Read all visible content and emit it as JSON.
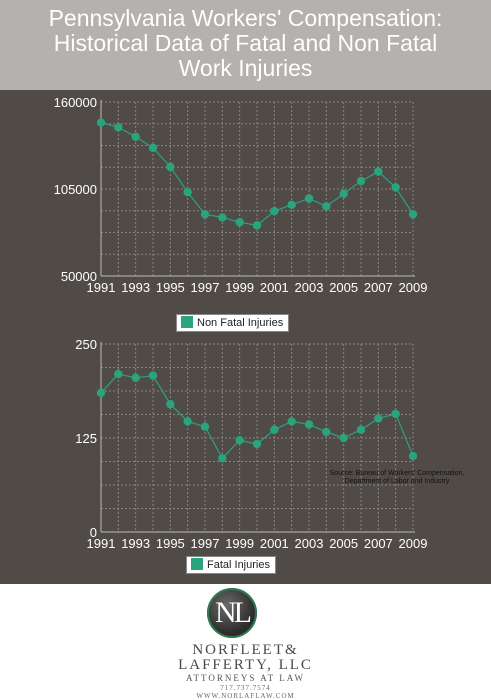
{
  "header": {
    "title_line1": "Pennsylvania Workers' Compensation:",
    "title_line2": "Historical Data of Fatal and Non Fatal",
    "title_line3": "Work Injuries"
  },
  "chart_data": [
    {
      "type": "line",
      "x": [
        1991,
        1992,
        1993,
        1994,
        1995,
        1996,
        1997,
        1998,
        1999,
        2000,
        2001,
        2002,
        2003,
        2004,
        2005,
        2006,
        2007,
        2008,
        2009
      ],
      "series": [
        {
          "name": "Non Fatal Injuries",
          "values": [
            147000,
            144000,
            138000,
            131000,
            119000,
            103000,
            89000,
            87000,
            84000,
            82000,
            91000,
            95000,
            99000,
            94000,
            102000,
            110000,
            116000,
            106000,
            89000
          ]
        }
      ],
      "xticks": [
        "1991",
        "1993",
        "1995",
        "1997",
        "1999",
        "2001",
        "2003",
        "2005",
        "2007",
        "2009"
      ],
      "yticks": [
        "50000",
        "105000",
        "160000"
      ],
      "ylim": [
        50000,
        160000
      ],
      "grid": true,
      "legend": "bottom-center",
      "color": "#2aa37f"
    },
    {
      "type": "line",
      "x": [
        1991,
        1992,
        1993,
        1994,
        1995,
        1996,
        1997,
        1998,
        1999,
        2000,
        2001,
        2002,
        2003,
        2004,
        2005,
        2006,
        2007,
        2008,
        2009
      ],
      "series": [
        {
          "name": "Fatal Injuries",
          "values": [
            185,
            210,
            205,
            208,
            170,
            147,
            140,
            98,
            122,
            117,
            136,
            147,
            143,
            133,
            125,
            136,
            151,
            157,
            101
          ]
        }
      ],
      "xticks": [
        "1991",
        "1993",
        "1995",
        "1997",
        "1999",
        "2001",
        "2003",
        "2005",
        "2007",
        "2009"
      ],
      "yticks": [
        "0",
        "125",
        "250"
      ],
      "ylim": [
        0,
        250
      ],
      "grid": true,
      "legend": "bottom-center",
      "color": "#2aa37f"
    }
  ],
  "legend": {
    "nonfatal_label": "Non Fatal Injuries",
    "fatal_label": "Fatal Injuries"
  },
  "source": {
    "line1": "Source: Bureau of Workers' Compensation,",
    "line2": "Department of Labor and Industry"
  },
  "footer": {
    "logo_letters": "NL",
    "firm_line1": "NORFLEET&",
    "firm_line2": "LAFFERTY, LLC",
    "firm_line3": "ATTORNEYS AT LAW",
    "phone": "717.737.7574",
    "website": "WWW.NORLAFLAW.COM"
  }
}
